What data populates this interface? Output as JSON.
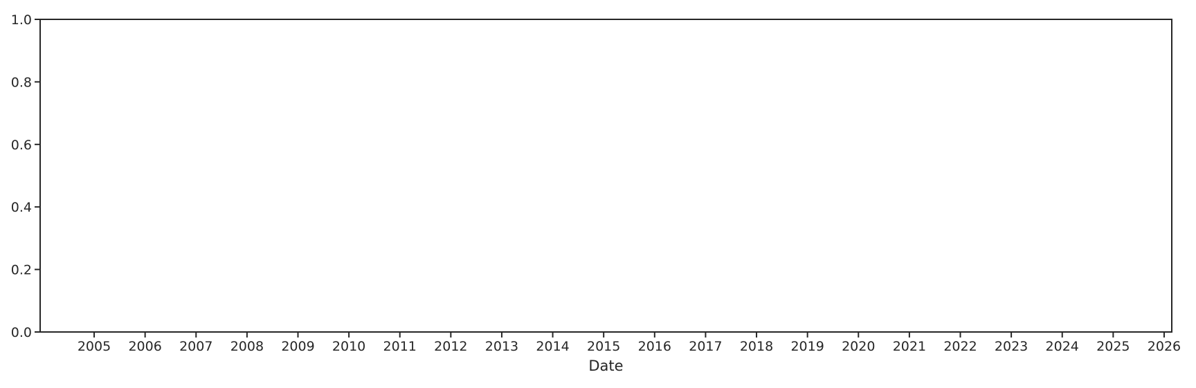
{
  "chart_data": {
    "type": "line",
    "title": "",
    "xlabel": "Date",
    "ylabel": "",
    "x_tick_values": [
      2005,
      2006,
      2007,
      2008,
      2009,
      2010,
      2011,
      2012,
      2013,
      2014,
      2015,
      2016,
      2017,
      2018,
      2019,
      2020,
      2021,
      2022,
      2023,
      2024,
      2025,
      2026
    ],
    "x_tick_labels": [
      "2005",
      "2006",
      "2007",
      "2008",
      "2009",
      "2010",
      "2011",
      "2012",
      "2013",
      "2014",
      "2015",
      "2016",
      "2017",
      "2018",
      "2019",
      "2020",
      "2021",
      "2022",
      "2023",
      "2024",
      "2025",
      "2026"
    ],
    "y_tick_values": [
      0.0,
      0.2,
      0.4,
      0.6,
      0.8,
      1.0
    ],
    "y_tick_labels": [
      "0.0",
      "0.2",
      "0.4",
      "0.6",
      "0.8",
      "1.0"
    ],
    "xlim": [
      2003.94,
      2026.15
    ],
    "ylim": [
      0.0,
      1.0
    ],
    "grid": false,
    "legend": false,
    "series": [],
    "note": "Empty axes: no data series are plotted inside the frame."
  },
  "colors": {
    "background": "#ffffff",
    "axis": "#262626",
    "text": "#262626"
  }
}
